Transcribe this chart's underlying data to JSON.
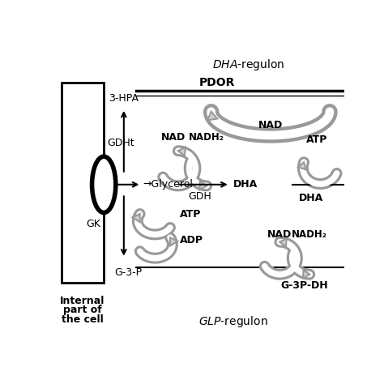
{
  "title_italic": "DHA",
  "title_rest": "-regulon",
  "glp_italic": "GLP",
  "glp_rest": "-regulon",
  "pdor_label": "PDOR",
  "background": "#ffffff",
  "labels": {
    "3hpa": "3-HPA",
    "gdht": "GDHt",
    "glycerol": "→Glycerol",
    "gk": "GK",
    "g3p": "G-3-P",
    "gdh": "GDH",
    "dha_left": "DHA",
    "dha_right": "DHA",
    "nad1": "NAD",
    "nadh1": "NADH₂",
    "atp1": "ATP",
    "adp": "ADP",
    "nad2": "NAD",
    "nadh2": "NADH₂",
    "nad3": "NAD",
    "atp2": "ATP",
    "g3pdh": "G-3P-DH",
    "internal1": "Internal",
    "internal2": "part of",
    "internal3": "the cell"
  },
  "colors": {
    "arrow_fill": "#c8c8c8",
    "arrow_edge": "#888888",
    "line": "black",
    "text": "black"
  }
}
